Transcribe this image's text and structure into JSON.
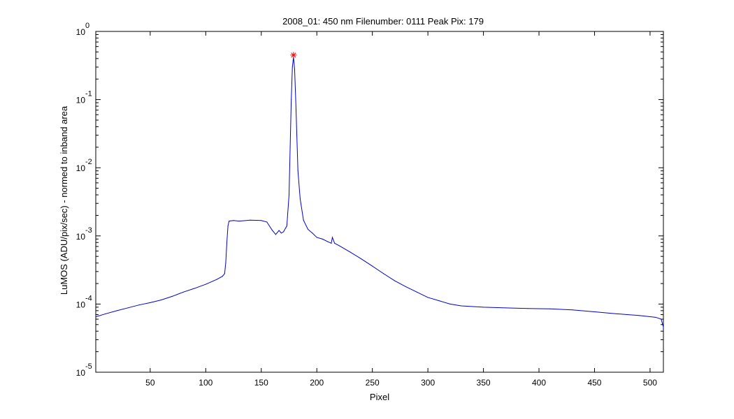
{
  "chart_data": {
    "type": "line",
    "title": "2008_01: 450 nm  Filenumber: 0111 Peak Pix: 179",
    "xlabel": "Pixel",
    "ylabel": "LuMOS (ADU/pix/sec) - normed to inband area",
    "xlim": [
      1,
      512
    ],
    "ylim": [
      1e-05,
      1
    ],
    "yscale": "log",
    "grid": false,
    "x_ticks": [
      50,
      100,
      150,
      200,
      250,
      300,
      350,
      400,
      450,
      500
    ],
    "y_ticks": [
      {
        "value": 1,
        "base": "10",
        "exp": "0"
      },
      {
        "value": 0.1,
        "base": "10",
        "exp": "-1"
      },
      {
        "value": 0.01,
        "base": "10",
        "exp": "-2"
      },
      {
        "value": 0.001,
        "base": "10",
        "exp": "-3"
      },
      {
        "value": 0.0001,
        "base": "10",
        "exp": "-4"
      },
      {
        "value": 1e-05,
        "base": "10",
        "exp": "-5"
      }
    ],
    "series": [
      {
        "color": "#0000cc",
        "points": [
          [
            1,
            6.5e-05
          ],
          [
            10,
            7.2e-05
          ],
          [
            20,
            8e-05
          ],
          [
            30,
            8.8e-05
          ],
          [
            40,
            9.7e-05
          ],
          [
            50,
            0.000105
          ],
          [
            60,
            0.000115
          ],
          [
            70,
            0.00013
          ],
          [
            80,
            0.00015
          ],
          [
            90,
            0.00017
          ],
          [
            100,
            0.000195
          ],
          [
            110,
            0.00023
          ],
          [
            115,
            0.000255
          ],
          [
            117,
            0.00028
          ],
          [
            118,
            0.0004
          ],
          [
            119,
            0.0008
          ],
          [
            120,
            0.0014
          ],
          [
            121,
            0.00165
          ],
          [
            125,
            0.00168
          ],
          [
            130,
            0.00165
          ],
          [
            140,
            0.0017
          ],
          [
            150,
            0.00168
          ],
          [
            155,
            0.0016
          ],
          [
            160,
            0.0012
          ],
          [
            163,
            0.00105
          ],
          [
            166,
            0.0012
          ],
          [
            168,
            0.0011
          ],
          [
            170,
            0.00115
          ],
          [
            173,
            0.0014
          ],
          [
            175,
            0.004
          ],
          [
            176,
            0.02
          ],
          [
            177,
            0.1
          ],
          [
            178,
            0.3
          ],
          [
            179,
            0.42
          ],
          [
            180,
            0.28
          ],
          [
            181,
            0.1
          ],
          [
            182,
            0.03
          ],
          [
            183,
            0.009
          ],
          [
            185,
            0.0035
          ],
          [
            188,
            0.0017
          ],
          [
            192,
            0.00125
          ],
          [
            196,
            0.0011
          ],
          [
            200,
            0.00095
          ],
          [
            205,
            0.0009
          ],
          [
            210,
            0.00082
          ],
          [
            213,
            0.00078
          ],
          [
            214,
            0.00095
          ],
          [
            216,
            0.00078
          ],
          [
            220,
            0.00072
          ],
          [
            230,
            0.00058
          ],
          [
            240,
            0.00046
          ],
          [
            250,
            0.00036
          ],
          [
            260,
            0.00028
          ],
          [
            270,
            0.00022
          ],
          [
            280,
            0.00018
          ],
          [
            290,
            0.00015
          ],
          [
            300,
            0.000125
          ],
          [
            310,
            0.000112
          ],
          [
            320,
            0.0001
          ],
          [
            330,
            9.4e-05
          ],
          [
            350,
            9e-05
          ],
          [
            370,
            8.8e-05
          ],
          [
            390,
            8.6e-05
          ],
          [
            410,
            8.5e-05
          ],
          [
            430,
            8.2e-05
          ],
          [
            450,
            7.7e-05
          ],
          [
            470,
            7.2e-05
          ],
          [
            490,
            6.8e-05
          ],
          [
            505,
            6.4e-05
          ],
          [
            510,
            6e-05
          ],
          [
            512,
            4.6e-05
          ]
        ]
      }
    ],
    "peak_marker": {
      "x": 179,
      "y": 0.45,
      "symbol": "*",
      "color": "#ff0000"
    }
  }
}
